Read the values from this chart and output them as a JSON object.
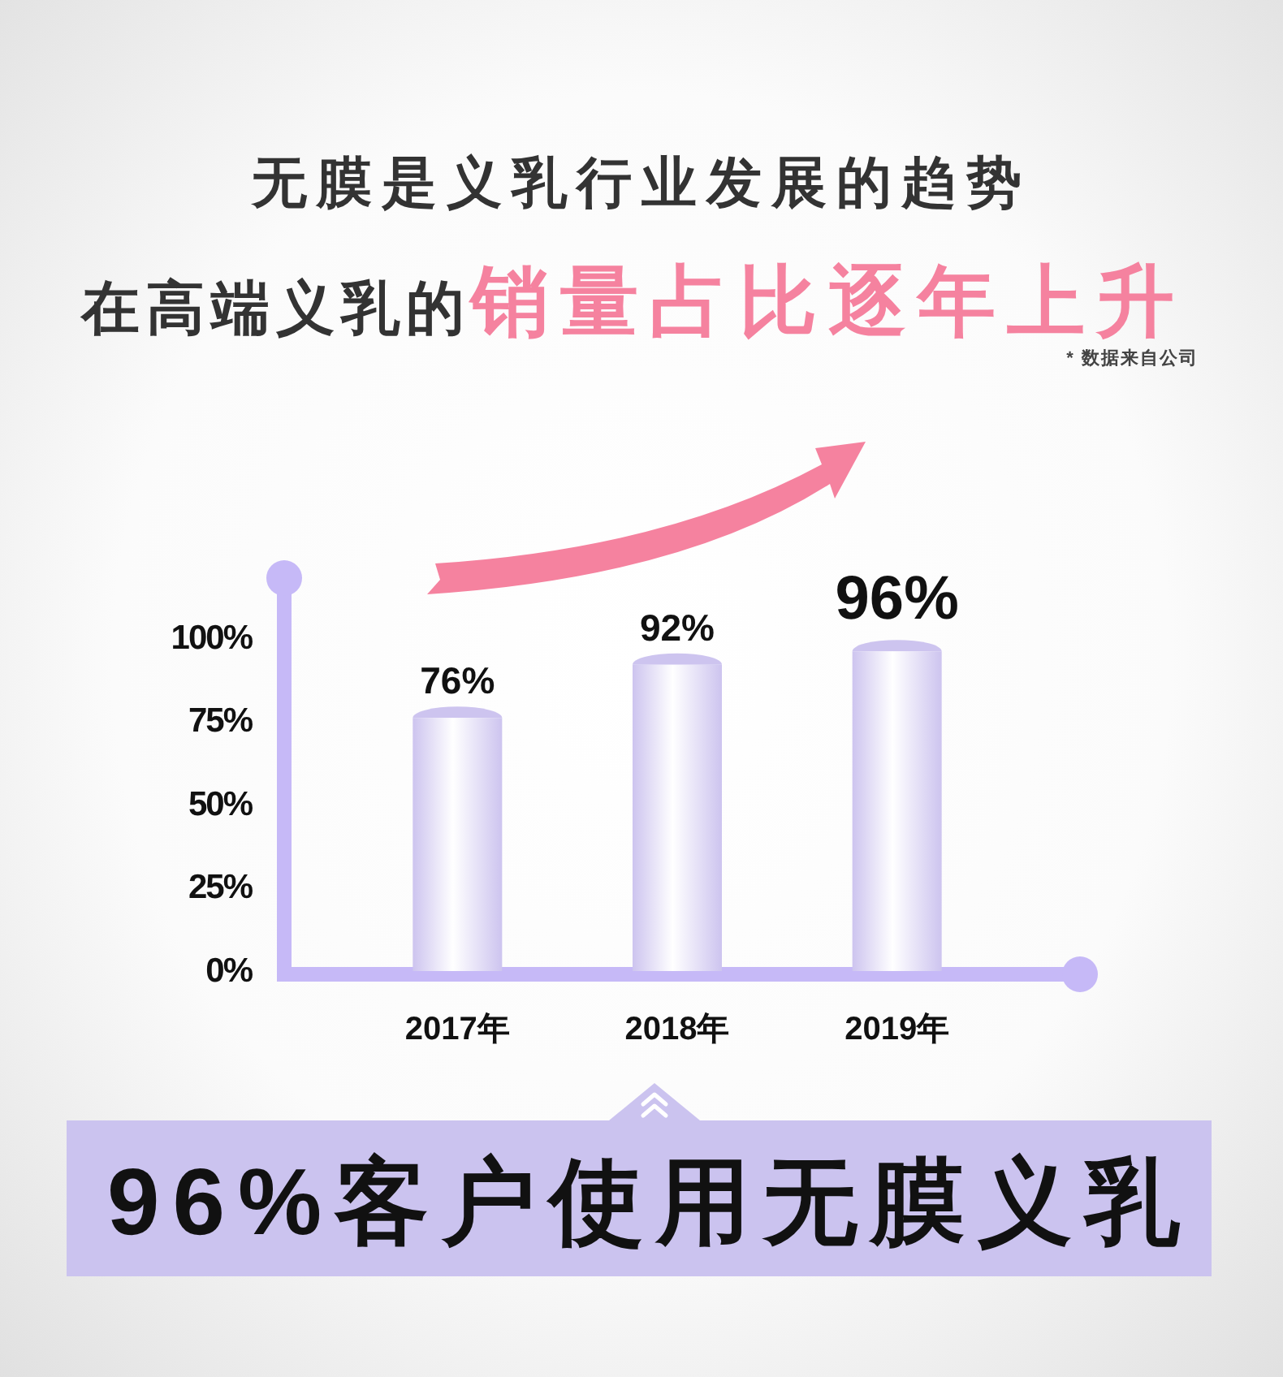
{
  "chart_data": {
    "type": "bar",
    "title": "无膜是义乳行业发展的趋势",
    "subtitle": [
      "在高端义乳的",
      "销量占比逐年上升"
    ],
    "categories": [
      "2017年",
      "2018年",
      "2019年"
    ],
    "values": [
      76,
      92,
      96
    ],
    "value_labels": [
      "76%",
      "92%",
      "96%"
    ],
    "color": "#cdc4ef",
    "ylim": [
      0,
      118
    ],
    "yticks": [
      {
        "value": 0,
        "label": "0%"
      },
      {
        "value": 25,
        "label": "25%"
      },
      {
        "value": 50,
        "label": "50%"
      },
      {
        "value": 75,
        "label": "75%"
      },
      {
        "value": 100,
        "label": "100%"
      }
    ],
    "annotations": [
      "* 数据来自公司",
      "96%客户使用无膜义乳"
    ]
  }
}
